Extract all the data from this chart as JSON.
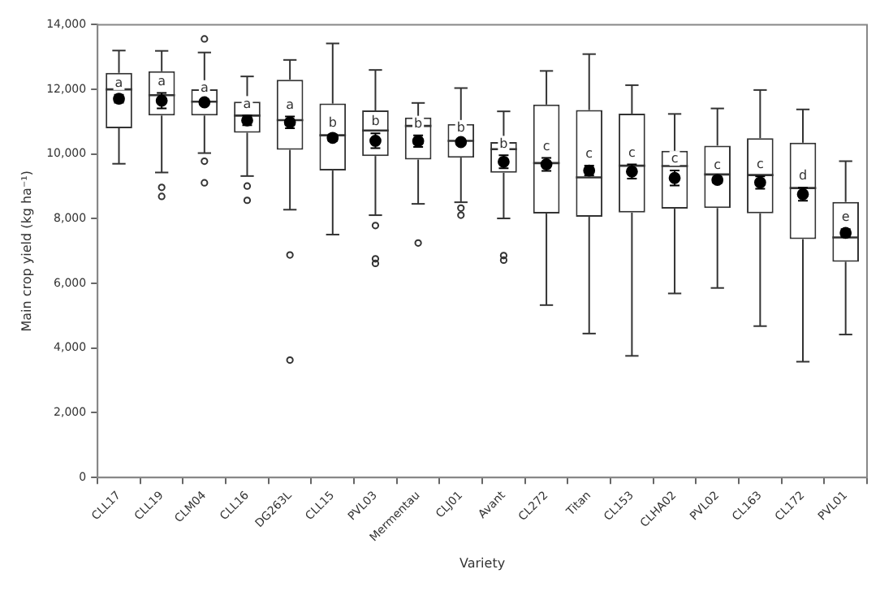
{
  "chart_data": {
    "type": "box",
    "xlabel": "Variety",
    "ylabel": "Main crop yield (kg ha⁻¹)",
    "categories": [
      "CLL17",
      "CLL19",
      "CLM04",
      "CLL16",
      "DG263L",
      "CLL15",
      "PVL03",
      "Mermentau",
      "CLJ01",
      "Avant",
      "CL272",
      "Titan",
      "CL153",
      "CLHA02",
      "PVL02",
      "CL163",
      "CL172",
      "PVL01"
    ],
    "series": [
      {
        "color": "#333333",
        "boxes": [
          {
            "low": 9700,
            "q1": 10800,
            "median": 12000,
            "q3": 12510,
            "high": 13200
          },
          {
            "low": 9430,
            "q1": 11190,
            "median": 11820,
            "q3": 12560,
            "high": 13190,
            "outliers": [
              8970,
              8690
            ]
          },
          {
            "low": 10030,
            "q1": 11190,
            "median": 11620,
            "q3": 12000,
            "high": 13140,
            "outliers": [
              13560,
              9780,
              9110
            ]
          },
          {
            "low": 9320,
            "q1": 10660,
            "median": 11190,
            "q3": 11620,
            "high": 12400,
            "outliers": [
              9010,
              8570
            ]
          },
          {
            "low": 8280,
            "q1": 10130,
            "median": 11050,
            "q3": 12300,
            "high": 12910,
            "outliers": [
              6880,
              3630
            ]
          },
          {
            "low": 7510,
            "q1": 9490,
            "median": 10580,
            "q3": 11560,
            "high": 13420
          },
          {
            "low": 8110,
            "q1": 9940,
            "median": 10730,
            "q3": 11350,
            "high": 12600,
            "outliers": [
              7790,
              6760,
              6620
            ]
          },
          {
            "low": 8460,
            "q1": 9830,
            "median": 10870,
            "q3": 11130,
            "high": 11580,
            "outliers": [
              7250
            ]
          },
          {
            "low": 8510,
            "q1": 9890,
            "median": 10410,
            "q3": 10930,
            "high": 12040,
            "outliers": [
              8330,
              8110
            ]
          },
          {
            "low": 8010,
            "q1": 9420,
            "median": 10150,
            "q3": 10370,
            "high": 11320,
            "outliers": [
              6860,
              6720
            ]
          },
          {
            "low": 5330,
            "q1": 8160,
            "median": 9720,
            "q3": 11530,
            "high": 12570
          },
          {
            "low": 4450,
            "q1": 8060,
            "median": 9280,
            "q3": 11360,
            "high": 13090
          },
          {
            "low": 3760,
            "q1": 8190,
            "median": 9640,
            "q3": 11250,
            "high": 12130
          },
          {
            "low": 5690,
            "q1": 8310,
            "median": 9630,
            "q3": 10100,
            "high": 11240
          },
          {
            "low": 5860,
            "q1": 8330,
            "median": 9370,
            "q3": 10260,
            "high": 11410
          },
          {
            "low": 4680,
            "q1": 8170,
            "median": 9350,
            "q3": 10490,
            "high": 11980
          },
          {
            "low": 3580,
            "q1": 7370,
            "median": 8950,
            "q3": 10350,
            "high": 11380
          },
          {
            "low": 4420,
            "q1": 6670,
            "median": 7420,
            "q3": 8520,
            "high": 9780
          }
        ]
      },
      {
        "type": "scatter",
        "color": "#000000",
        "x": [
          "CLL17",
          "CLL19",
          "CLM04",
          "CLL16",
          "DG263L",
          "CLL15",
          "PVL03",
          "Mermentau",
          "CLJ01",
          "Avant",
          "CL272",
          "Titan",
          "CL153",
          "CLHA02",
          "PVL02",
          "CL163",
          "CL172",
          "PVL01"
        ],
        "values": [
          11710,
          11650,
          11600,
          11040,
          10980,
          10500,
          10410,
          10400,
          10370,
          9760,
          9680,
          9490,
          9460,
          9260,
          9200,
          9120,
          8760,
          7560
        ],
        "errors": [
          120,
          240,
          80,
          150,
          180,
          100,
          230,
          180,
          80,
          200,
          200,
          150,
          220,
          230,
          100,
          190,
          200,
          120
        ]
      }
    ],
    "marker": "circle",
    "ylim": [
      0,
      14000
    ],
    "yticks": [
      0,
      {
        "value": 2000,
        "label": "2,000"
      },
      {
        "value": 4000,
        "label": "4,000"
      },
      {
        "value": 6000,
        "label": "6,000"
      },
      {
        "value": 8000,
        "label": "8,000"
      },
      {
        "value": 10000,
        "label": "10,000"
      },
      {
        "value": 12000,
        "label": "12,000"
      },
      {
        "value": 14000,
        "label": "14,000"
      }
    ],
    "grid": false,
    "legend": false,
    "annotations": [
      "a",
      "a",
      "a",
      "a",
      "a",
      "b",
      "b",
      "b",
      "b",
      "b",
      "c",
      "c",
      "c",
      "c",
      "c",
      "c",
      "d",
      "e"
    ]
  }
}
